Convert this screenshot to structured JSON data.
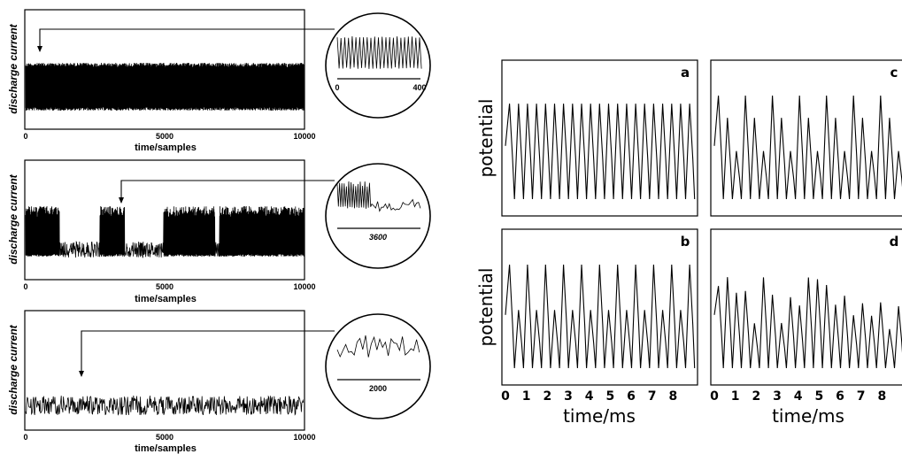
{
  "chart_data": [
    {
      "type": "line",
      "id": "left-top",
      "ylabel": "discharge current",
      "xlabel": "time/samples",
      "xticks": [
        "0",
        "5000",
        "10000"
      ],
      "xlim": [
        0,
        10000
      ],
      "regime": "periodic",
      "inset": {
        "xticks": [
          "0",
          "400"
        ],
        "xlim": [
          0,
          400
        ],
        "pointer_at": 400
      }
    },
    {
      "type": "line",
      "id": "left-middle",
      "ylabel": "discharge current",
      "xlabel": "time/samples",
      "xticks": [
        "0",
        "5000",
        "10000"
      ],
      "xlim": [
        0,
        10000
      ],
      "regime": "intermittent",
      "inset": {
        "xticks": [
          "3600"
        ],
        "center": 3600,
        "pointer_at": 3600
      }
    },
    {
      "type": "line",
      "id": "left-bottom",
      "ylabel": "discharge current",
      "xlabel": "time/samples",
      "xticks": [
        "0",
        "5000",
        "10000"
      ],
      "xlim": [
        0,
        10000
      ],
      "regime": "chaotic",
      "inset": {
        "xticks": [
          "2000"
        ],
        "center": 2000,
        "pointer_at": 2000
      }
    },
    {
      "type": "line",
      "id": "right-a",
      "label": "a",
      "ylabel": "potential",
      "period_ms": 0.43,
      "regime": "period-1"
    },
    {
      "type": "line",
      "id": "right-b",
      "label": "b",
      "ylabel": "potential",
      "period_ms": 0.86,
      "regime": "period-2"
    },
    {
      "type": "line",
      "id": "right-c",
      "label": "c",
      "period_ms": 1.29,
      "regime": "period-3"
    },
    {
      "type": "line",
      "id": "right-d",
      "label": "d",
      "regime": "chaotic"
    }
  ],
  "right_axis": {
    "xlabel": "time/ms",
    "xticks": [
      "0",
      "1",
      "2",
      "3",
      "4",
      "5",
      "6",
      "7",
      "8"
    ],
    "xlim": [
      0,
      9
    ]
  }
}
